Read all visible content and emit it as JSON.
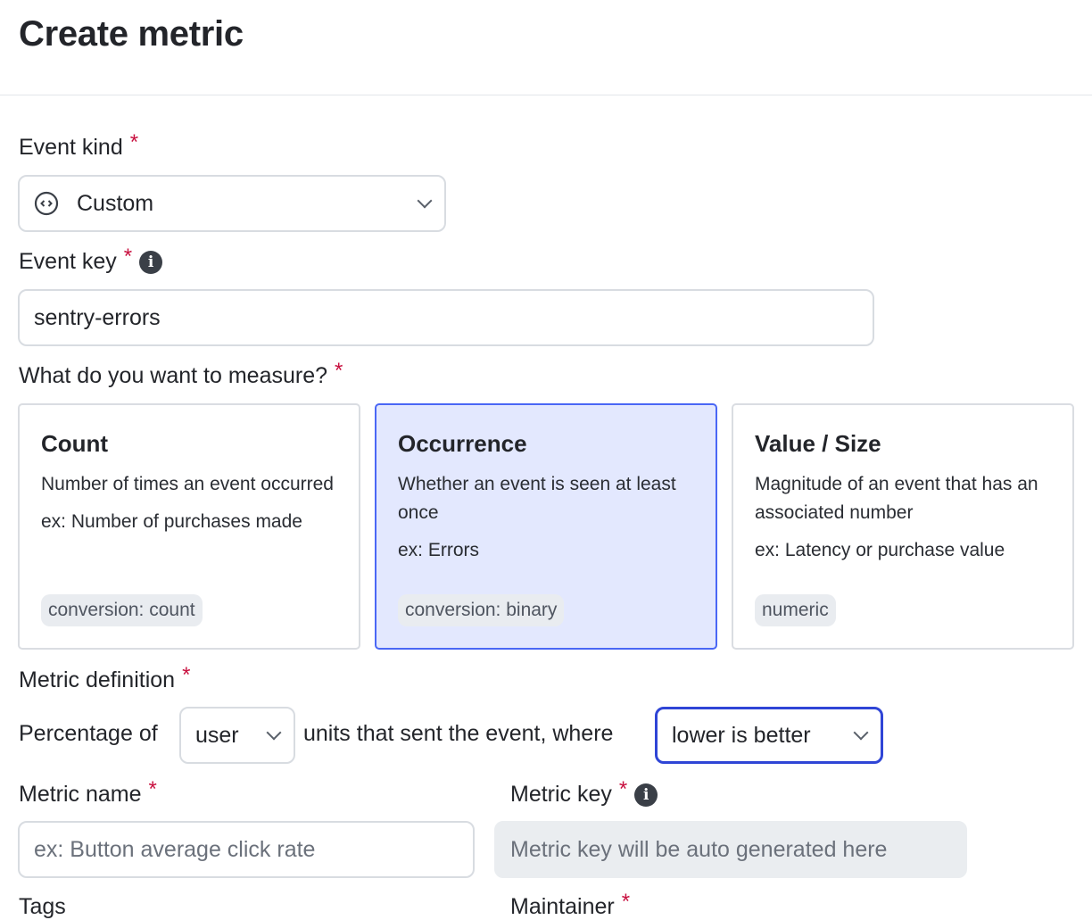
{
  "title": "Create metric",
  "event_kind": {
    "label": "Event kind",
    "value": "Custom",
    "icon": "code-circle-icon"
  },
  "event_key": {
    "label": "Event key",
    "value": "sentry-errors"
  },
  "measure": {
    "label": "What do you want to measure?",
    "options": [
      {
        "title": "Count",
        "desc": "Number of times an event occurred",
        "example": "ex: Number of purchases made",
        "tag": "conversion: count",
        "selected": false
      },
      {
        "title": "Occurrence",
        "desc": "Whether an event is seen at least once",
        "example": "ex: Errors",
        "tag": "conversion: binary",
        "selected": true
      },
      {
        "title": "Value / Size",
        "desc": "Magnitude of an event that has an associated number",
        "example": "ex: Latency or purchase value",
        "tag": "numeric",
        "selected": false
      }
    ]
  },
  "definition": {
    "label": "Metric definition",
    "prefix": "Percentage of",
    "unit": "user",
    "middle": "units that sent the event, where",
    "direction": "lower is better"
  },
  "metric_name": {
    "label": "Metric name",
    "placeholder": "ex: Button average click rate"
  },
  "metric_key": {
    "label": "Metric key",
    "placeholder": "Metric key will be auto generated here"
  },
  "tags": {
    "label": "Tags"
  },
  "maintainer": {
    "label": "Maintainer"
  },
  "required_mark": "*",
  "colors": {
    "accent": "#2f45d6",
    "selected_bg": "#e3e8fe",
    "required": "#c8103f"
  }
}
